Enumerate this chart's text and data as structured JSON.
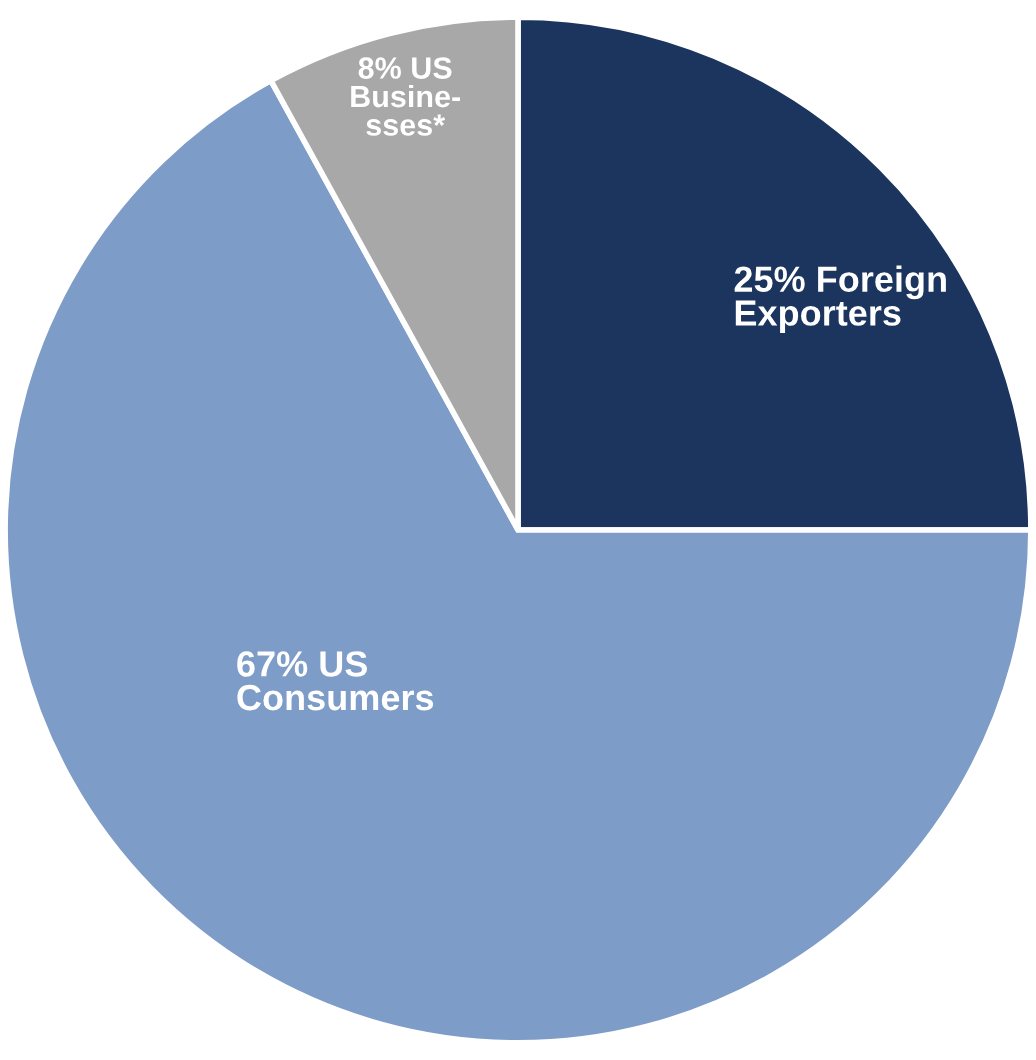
{
  "chart_data": {
    "type": "pie",
    "categories": [
      "25% Foreign\nExporters",
      "67% US\nConsumers",
      "8% US\nBusine-\nsses*"
    ],
    "values": [
      25,
      67,
      8
    ],
    "colors": [
      "#1c355e",
      "#7e9cc8",
      "#a8a8a8"
    ]
  }
}
